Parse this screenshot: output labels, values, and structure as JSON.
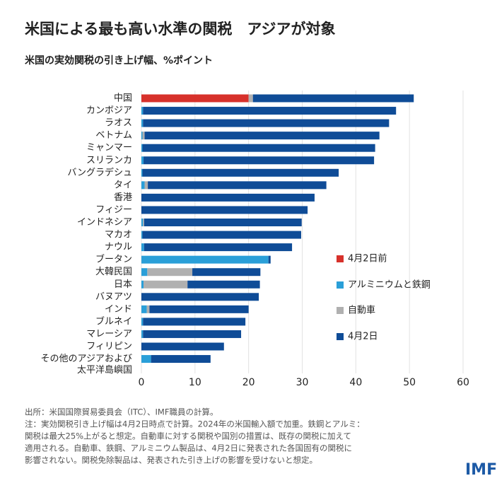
{
  "chart_data": {
    "type": "stacked-barh",
    "title": "米国による最も高い水準の関税　アジアが対象",
    "subtitle": "米国の実効関税の引き上げ幅、%ポイント",
    "categories": [
      "中国",
      "カンボジア",
      "ラオス",
      "ベトナム",
      "ミャンマー",
      "スリランカ",
      "バングラデシュ",
      "タイ",
      "香港",
      "フィジー",
      "インドネシア",
      "マカオ",
      "ナウル",
      "ブータン",
      "大韓民国",
      "日本",
      "バヌアツ",
      "インド",
      "ブルネイ",
      "マレーシア",
      "フィリピン",
      [
        "その他のアジアおよび",
        "太平洋島嶼国"
      ]
    ],
    "series": [
      {
        "name": "4月2日前",
        "color": "#d7312b",
        "values": [
          20,
          0,
          0,
          0,
          0,
          0,
          0,
          0,
          0,
          0,
          0,
          0,
          0,
          0,
          0,
          0,
          0,
          0,
          0,
          0,
          0,
          0
        ]
      },
      {
        "name": "アルミニウムと鉄鋼",
        "color": "#2a9fd8",
        "values": [
          0,
          0.3,
          0.3,
          0.2,
          0.2,
          0.4,
          0.2,
          0.6,
          0,
          0,
          0.3,
          0.2,
          0.5,
          23.7,
          1.1,
          0.4,
          0,
          1.0,
          0.3,
          0.3,
          0,
          1.8
        ]
      },
      {
        "name": "自動車",
        "color": "#b0b0b0",
        "values": [
          0.8,
          0,
          0,
          0.4,
          0,
          0,
          0,
          0.6,
          0,
          0,
          0.2,
          0,
          0,
          0,
          8.4,
          8.2,
          0,
          0.5,
          0,
          0,
          0,
          0
        ]
      },
      {
        "name": "4月2日",
        "color": "#0f4c97",
        "values": [
          30,
          47.2,
          45.9,
          43.8,
          43.4,
          43,
          36.6,
          33.3,
          32.3,
          31,
          29.4,
          29.6,
          27.6,
          0.4,
          12.7,
          13.5,
          21.9,
          18.5,
          19.1,
          18.3,
          15.4,
          11.1
        ]
      }
    ],
    "xlim": [
      0,
      60
    ],
    "xticks": [
      0,
      10,
      20,
      30,
      40,
      50,
      60
    ],
    "grid": true,
    "notes": [
      "出所：米国国際貿易委員会（ITC）、IMF職員の計算。",
      "注：実効関税引き上げ幅は4月2日時点で計算。2024年の米国輸入額で加重。鉄鋼とアルミ：",
      "関税は最大25%上がると想定。自動車に対する関税や国別の措置は、既存の関税に加えて",
      "適用される。自動車、鉄鋼、アルミニウム製品は、4月2日に発表された各国固有の関税に",
      "影響されない。関税免除製品は、発表された引き上げの影響を受けないと想定。"
    ],
    "logo": "IMF"
  }
}
